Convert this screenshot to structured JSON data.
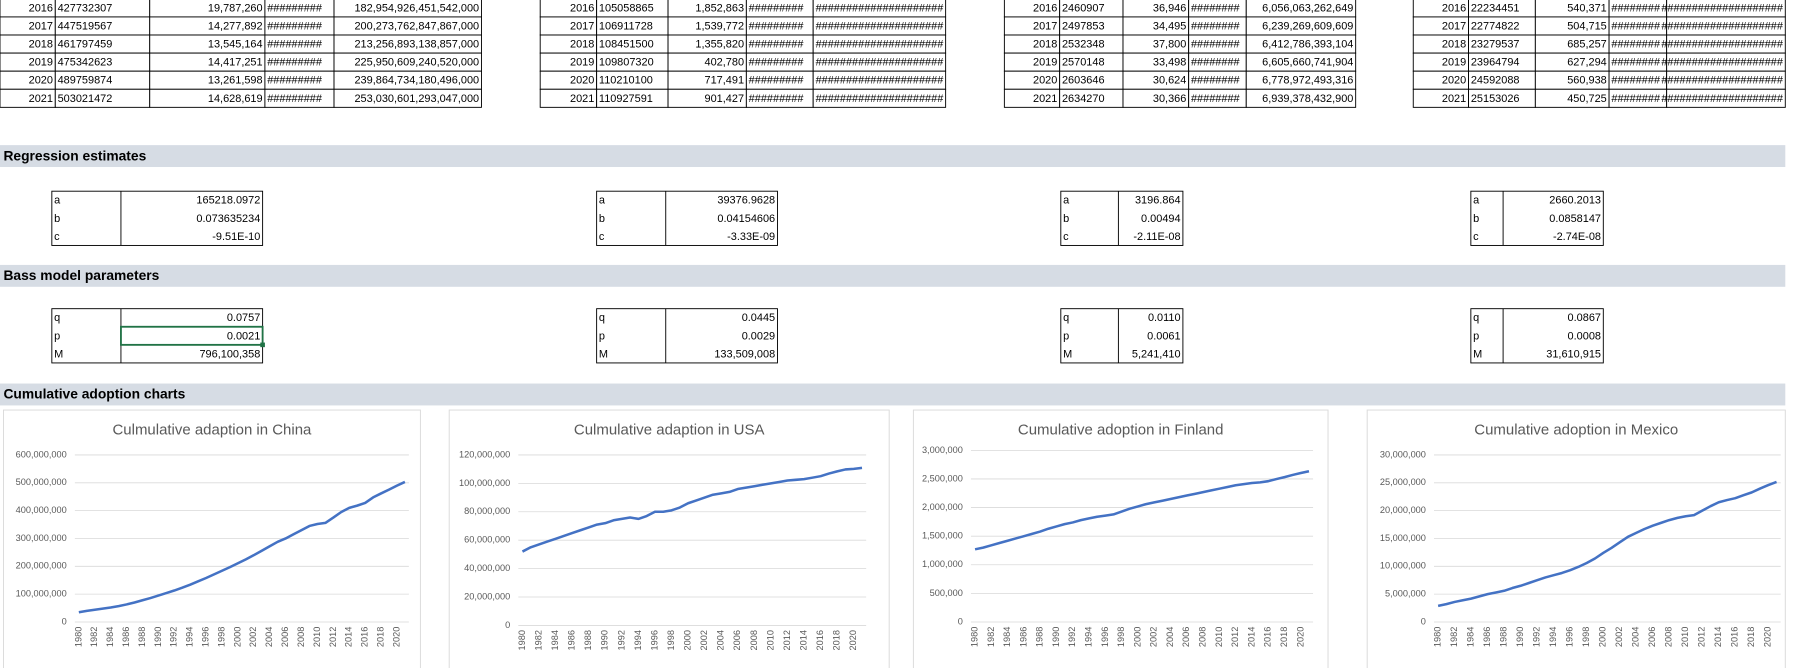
{
  "top_tables": [
    {
      "rows": [
        [
          "2016",
          "427732307",
          "19,787,260",
          "#########",
          "182,954,926,451,542,000"
        ],
        [
          "2017",
          "447519567",
          "14,277,892",
          "#########",
          "200,273,762,847,867,000"
        ],
        [
          "2018",
          "461797459",
          "13,545,164",
          "#########",
          "213,256,893,138,857,000"
        ],
        [
          "2019",
          "475342623",
          "14,417,251",
          "#########",
          "225,950,609,240,520,000"
        ],
        [
          "2020",
          "489759874",
          "13,261,598",
          "#########",
          "239,864,734,180,496,000"
        ],
        [
          "2021",
          "503021472",
          "14,628,619",
          "#########",
          "253,030,601,293,047,000"
        ]
      ]
    },
    {
      "rows": [
        [
          "2016",
          "105058865",
          "1,852,863",
          "#########",
          "#####################"
        ],
        [
          "2017",
          "106911728",
          "1,539,772",
          "#########",
          "#####################"
        ],
        [
          "2018",
          "108451500",
          "1,355,820",
          "#########",
          "#####################"
        ],
        [
          "2019",
          "109807320",
          "402,780",
          "#########",
          "#####################"
        ],
        [
          "2020",
          "110210100",
          "717,491",
          "#########",
          "#####################"
        ],
        [
          "2021",
          "110927591",
          "901,427",
          "#########",
          "#####################"
        ]
      ]
    },
    {
      "rows": [
        [
          "2016",
          "2460907",
          "36,946",
          "########",
          "6,056,063,262,649"
        ],
        [
          "2017",
          "2497853",
          "34,495",
          "########",
          "6,239,269,609,609"
        ],
        [
          "2018",
          "2532348",
          "37,800",
          "########",
          "6,412,786,393,104"
        ],
        [
          "2019",
          "2570148",
          "33,498",
          "########",
          "6,605,660,741,904"
        ],
        [
          "2020",
          "2603646",
          "30,624",
          "########",
          "6,778,972,493,316"
        ],
        [
          "2021",
          "2634270",
          "30,366",
          "########",
          "6,939,378,432,900"
        ]
      ]
    },
    {
      "rows": [
        [
          "2016",
          "22234451",
          "540,371",
          "########",
          "####################"
        ],
        [
          "2017",
          "22774822",
          "504,715",
          "########",
          "####################"
        ],
        [
          "2018",
          "23279537",
          "685,257",
          "########",
          "####################"
        ],
        [
          "2019",
          "23964794",
          "627,294",
          "########",
          "####################"
        ],
        [
          "2020",
          "24592088",
          "560,938",
          "########",
          "####################"
        ],
        [
          "2021",
          "25153026",
          "450,725",
          "########",
          "####################"
        ]
      ]
    }
  ],
  "sections": {
    "regression": "Regression estimates",
    "bass": "Bass model parameters",
    "charts": "Cumulative adoption charts"
  },
  "regression": [
    {
      "rows": [
        [
          "a",
          "165218.0972"
        ],
        [
          "b",
          "0.073635234"
        ],
        [
          "c",
          "-9.51E-10"
        ]
      ]
    },
    {
      "rows": [
        [
          "a",
          "39376.9628"
        ],
        [
          "b",
          "0.04154606"
        ],
        [
          "c",
          "-3.33E-09"
        ]
      ]
    },
    {
      "rows": [
        [
          "a",
          "3196.864"
        ],
        [
          "b",
          "0.00494"
        ],
        [
          "c",
          "-2.11E-08"
        ]
      ]
    },
    {
      "rows": [
        [
          "a",
          "2660.2013"
        ],
        [
          "b",
          "0.0858147"
        ],
        [
          "c",
          "-2.74E-08"
        ]
      ]
    }
  ],
  "bass": [
    {
      "rows": [
        [
          "q",
          "0.0757"
        ],
        [
          "p",
          "0.0021"
        ],
        [
          "M",
          "796,100,358"
        ]
      ]
    },
    {
      "rows": [
        [
          "q",
          "0.0445"
        ],
        [
          "p",
          "0.0029"
        ],
        [
          "M",
          "133,509,008"
        ]
      ]
    },
    {
      "rows": [
        [
          "q",
          "0.0110"
        ],
        [
          "p",
          "0.0061"
        ],
        [
          "M",
          "5,241,410"
        ]
      ]
    },
    {
      "rows": [
        [
          "q",
          "0.0867"
        ],
        [
          "p",
          "0.0008"
        ],
        [
          "M",
          "31,610,915"
        ]
      ]
    }
  ],
  "chart_data": [
    {
      "type": "line",
      "title": "Culmulative adaption in China",
      "color": "#4472c4",
      "grid": true,
      "categories": [
        "1980",
        null,
        "1982",
        null,
        "1984",
        null,
        "1986",
        null,
        "1988",
        null,
        "1990",
        null,
        "1992",
        null,
        "1994",
        null,
        "1996",
        null,
        "1998",
        null,
        "2000",
        null,
        "2002",
        null,
        "2004",
        null,
        "2006",
        null,
        "2008",
        null,
        "2010",
        null,
        "2012",
        null,
        "2014",
        null,
        "2016",
        null,
        "2018",
        null,
        "2020",
        null
      ],
      "values": [
        35000000,
        40000000,
        44000000,
        48000000,
        52000000,
        57000000,
        63000000,
        70000000,
        78000000,
        86000000,
        95000000,
        104000000,
        113000000,
        123000000,
        134000000,
        146000000,
        158000000,
        171000000,
        184000000,
        197000000,
        211000000,
        225000000,
        240000000,
        256000000,
        272000000,
        288000000,
        300000000,
        315000000,
        330000000,
        345000000,
        352000000,
        356000000,
        375000000,
        395000000,
        410000000,
        418000000,
        427732307,
        447519567,
        461797459,
        475342623,
        489759874,
        503021472
      ],
      "ylim": [
        0,
        600000000
      ],
      "yticks": [
        0,
        {
          "value": 100000000,
          "label": "100,000,000"
        },
        {
          "value": 200000000,
          "label": "200,000,000"
        },
        {
          "value": 300000000,
          "label": "300,000,000"
        },
        {
          "value": 400000000,
          "label": "400,000,000"
        },
        {
          "value": 500000000,
          "label": "500,000,000"
        },
        {
          "value": 600000000,
          "label": "600,000,000"
        }
      ]
    },
    {
      "type": "line",
      "title": "Culmulative adaption in USA",
      "color": "#4472c4",
      "grid": true,
      "categories": [
        "1980",
        null,
        "1982",
        null,
        "1984",
        null,
        "1986",
        null,
        "1988",
        null,
        "1990",
        null,
        "1992",
        null,
        "1994",
        null,
        "1996",
        null,
        "1998",
        null,
        "2000",
        null,
        "2002",
        null,
        "2004",
        null,
        "2006",
        null,
        "2008",
        null,
        "2010",
        null,
        "2012",
        null,
        "2014",
        null,
        "2016",
        null,
        "2018",
        null,
        "2020",
        null
      ],
      "values": [
        52000000,
        55000000,
        57000000,
        59000000,
        61000000,
        63000000,
        65000000,
        67000000,
        69000000,
        71000000,
        72000000,
        74000000,
        75000000,
        76000000,
        75000000,
        77000000,
        80000000,
        80000000,
        81000000,
        83000000,
        86000000,
        88000000,
        90000000,
        92000000,
        93000000,
        94000000,
        96000000,
        97000000,
        98000000,
        99000000,
        100000000,
        101000000,
        102000000,
        102500000,
        103000000,
        104000000,
        105058865,
        106911728,
        108451500,
        109807320,
        110210100,
        110927591
      ],
      "ylim": [
        0,
        120000000
      ],
      "yticks": [
        0,
        {
          "value": 20000000,
          "label": "20,000,000"
        },
        {
          "value": 40000000,
          "label": "40,000,000"
        },
        {
          "value": 60000000,
          "label": "60,000,000"
        },
        {
          "value": 80000000,
          "label": "80,000,000"
        },
        {
          "value": 100000000,
          "label": "100,000,000"
        },
        {
          "value": 120000000,
          "label": "120,000,000"
        }
      ]
    },
    {
      "type": "line",
      "title": "Cumulative adoption in Finland",
      "color": "#4472c4",
      "grid": true,
      "categories": [
        "1980",
        null,
        "1982",
        null,
        "1984",
        null,
        "1986",
        null,
        "1988",
        null,
        "1990",
        null,
        "1992",
        null,
        "1994",
        null,
        "1996",
        null,
        "1998",
        null,
        "2000",
        null,
        "2002",
        null,
        "2004",
        null,
        "2006",
        null,
        "2008",
        null,
        "2010",
        null,
        "2012",
        null,
        "2014",
        null,
        "2016",
        null,
        "2018",
        null,
        "2020",
        null
      ],
      "values": [
        1270000,
        1300000,
        1340000,
        1380000,
        1420000,
        1460000,
        1500000,
        1540000,
        1580000,
        1630000,
        1670000,
        1710000,
        1740000,
        1780000,
        1810000,
        1840000,
        1860000,
        1880000,
        1930000,
        1980000,
        2020000,
        2060000,
        2090000,
        2120000,
        2150000,
        2180000,
        2210000,
        2240000,
        2270000,
        2300000,
        2330000,
        2360000,
        2390000,
        2410000,
        2430000,
        2440000,
        2460907,
        2497853,
        2532348,
        2570148,
        2603646,
        2634270
      ],
      "ylim": [
        0,
        3000000
      ],
      "yticks": [
        0,
        {
          "value": 500000,
          "label": "500,000"
        },
        {
          "value": 1000000,
          "label": "1,000,000"
        },
        {
          "value": 1500000,
          "label": "1,500,000"
        },
        {
          "value": 2000000,
          "label": "2,000,000"
        },
        {
          "value": 2500000,
          "label": "2,500,000"
        },
        {
          "value": 3000000,
          "label": "3,000,000"
        }
      ]
    },
    {
      "type": "line",
      "title": "Cumulative adoption in Mexico",
      "color": "#4472c4",
      "grid": true,
      "categories": [
        "1980",
        null,
        "1982",
        null,
        "1984",
        null,
        "1986",
        null,
        "1988",
        null,
        "1990",
        null,
        "1992",
        null,
        "1994",
        null,
        "1996",
        null,
        "1998",
        null,
        "2000",
        null,
        "2002",
        null,
        "2004",
        null,
        "2006",
        null,
        "2008",
        null,
        "2010",
        null,
        "2012",
        null,
        "2014",
        null,
        "2016",
        null,
        "2018",
        null,
        "2020",
        null
      ],
      "values": [
        2900000,
        3200000,
        3600000,
        3900000,
        4200000,
        4600000,
        5000000,
        5300000,
        5600000,
        6100000,
        6500000,
        7000000,
        7500000,
        8000000,
        8400000,
        8800000,
        9300000,
        9900000,
        10600000,
        11400000,
        12400000,
        13300000,
        14300000,
        15300000,
        16000000,
        16700000,
        17300000,
        17800000,
        18300000,
        18700000,
        19000000,
        19200000,
        20000000,
        20800000,
        21500000,
        21900000,
        22234451,
        22774822,
        23279537,
        23964794,
        24592088,
        25153026
      ],
      "ylim": [
        0,
        30000000
      ],
      "yticks": [
        0,
        {
          "value": 5000000,
          "label": "5,000,000"
        },
        {
          "value": 10000000,
          "label": "10,000,000"
        },
        {
          "value": 15000000,
          "label": "15,000,000"
        },
        {
          "value": 20000000,
          "label": "20,000,000"
        },
        {
          "value": 25000000,
          "label": "25,000,000"
        },
        {
          "value": 30000000,
          "label": "30,000,000"
        }
      ]
    }
  ]
}
